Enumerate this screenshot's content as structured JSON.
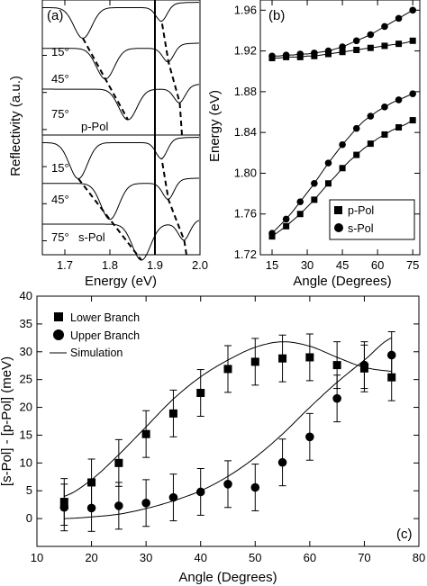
{
  "chart_data": [
    {
      "panel": "(a)",
      "type": "line",
      "xlabel": "Energy (eV)",
      "ylabel": "Reflectivity (a.u.)",
      "xlim": [
        1.65,
        2.0
      ],
      "xticks": [
        "1.7",
        "1.8",
        "1.9",
        "2.0"
      ],
      "labels": {
        "p_angles": [
          "15°",
          "45°",
          "75°"
        ],
        "s_angles": [
          "15°",
          "45°",
          "75°"
        ],
        "p": "p-Pol",
        "s": "s-Pol"
      },
      "vline_x": 1.9,
      "series": [
        {
          "group": "p-Pol",
          "name": "15°",
          "dip_x": 1.74,
          "dip2_x": 1.915,
          "base": 0.97
        },
        {
          "group": "p-Pol",
          "name": "45°",
          "dip_x": 1.79,
          "dip2_x": 1.93,
          "base": 0.81
        },
        {
          "group": "p-Pol",
          "name": "75°",
          "dip_x": 1.84,
          "dip2_x": 1.955,
          "base": 0.65
        },
        {
          "group": "s-Pol",
          "name": "15°",
          "dip_x": 1.73,
          "dip2_x": 1.915,
          "base": 0.44
        },
        {
          "group": "s-Pol",
          "name": "45°",
          "dip_x": 1.8,
          "dip2_x": 1.93,
          "base": 0.28
        },
        {
          "group": "s-Pol",
          "name": "75°",
          "dip_x": 1.87,
          "dip2_x": 1.965,
          "base": 0.12
        }
      ]
    },
    {
      "panel": "(b)",
      "type": "scatter",
      "xlabel": "Angle (Degrees)",
      "ylabel": "Energy (eV)",
      "xlim": [
        10,
        78
      ],
      "ylim": [
        1.72,
        1.97
      ],
      "xticks": [
        15,
        30,
        45,
        60,
        75
      ],
      "yticks": [
        "1.72",
        "1.76",
        "1.80",
        "1.84",
        "1.88",
        "1.92",
        "1.96"
      ],
      "legend": {
        "position": "bottom-right",
        "entries": [
          "p-Pol",
          "s-Pol"
        ]
      },
      "x": [
        15,
        18,
        21,
        24,
        27,
        30,
        33,
        36,
        39,
        42,
        45,
        48,
        51,
        54,
        57,
        60,
        63,
        66,
        69,
        72,
        75
      ],
      "series": [
        {
          "name": "p-Pol",
          "branch": "upper",
          "values": [
            1.913,
            1.913,
            1.914,
            1.914,
            1.914,
            1.915,
            1.915,
            1.916,
            1.917,
            1.918,
            1.919,
            1.92,
            1.921,
            1.922,
            1.923,
            1.924,
            1.925,
            1.926,
            1.927,
            1.928,
            1.93
          ]
        },
        {
          "name": "s-Pol",
          "branch": "upper",
          "values": [
            1.915,
            1.915,
            1.916,
            1.916,
            1.917,
            1.917,
            1.918,
            1.919,
            1.92,
            1.922,
            1.924,
            1.927,
            1.93,
            1.933,
            1.936,
            1.94,
            1.944,
            1.948,
            1.952,
            1.956,
            1.96
          ]
        },
        {
          "name": "p-Pol",
          "branch": "lower",
          "values": [
            1.738,
            1.743,
            1.748,
            1.754,
            1.76,
            1.767,
            1.774,
            1.782,
            1.79,
            1.797,
            1.805,
            1.812,
            1.818,
            1.824,
            1.829,
            1.834,
            1.838,
            1.842,
            1.845,
            1.848,
            1.852
          ]
        },
        {
          "name": "s-Pol",
          "branch": "lower",
          "values": [
            1.741,
            1.748,
            1.755,
            1.763,
            1.772,
            1.781,
            1.79,
            1.8,
            1.81,
            1.819,
            1.828,
            1.836,
            1.844,
            1.851,
            1.856,
            1.861,
            1.865,
            1.869,
            1.872,
            1.875,
            1.878
          ]
        }
      ]
    },
    {
      "panel": "(c)",
      "type": "scatter",
      "xlabel": "Angle (Degrees)",
      "ylabel": "[s-Pol] - [p-Pol] (meV)",
      "xlim": [
        10,
        80
      ],
      "ylim": [
        -5,
        40
      ],
      "xticks": [
        10,
        20,
        30,
        40,
        50,
        60,
        70,
        80
      ],
      "yticks": [
        0,
        5,
        10,
        15,
        20,
        25,
        30,
        35,
        40
      ],
      "legend": {
        "position": "top-left",
        "entries": [
          "Lower Branch",
          "Upper Branch",
          "Simulation"
        ]
      },
      "x": [
        15,
        20,
        25,
        30,
        35,
        40,
        45,
        50,
        55,
        60,
        65,
        70,
        75
      ],
      "series": [
        {
          "name": "Lower Branch",
          "values": [
            3.0,
            6.5,
            10.0,
            15.2,
            18.9,
            22.6,
            26.9,
            28.2,
            28.8,
            29.0,
            27.6,
            27.0,
            25.4
          ],
          "error": [
            4.2,
            4.2,
            4.2,
            4.2,
            4.2,
            4.2,
            4.2,
            4.2,
            4.2,
            4.2,
            4.2,
            4.2,
            4.2
          ]
        },
        {
          "name": "Upper Branch",
          "values": [
            2.0,
            1.9,
            2.3,
            2.8,
            3.8,
            4.8,
            6.2,
            5.6,
            10.1,
            14.7,
            21.6,
            27.6,
            29.4
          ],
          "error": [
            4.2,
            4.2,
            4.2,
            4.2,
            4.2,
            4.2,
            4.2,
            4.2,
            4.2,
            4.2,
            4.2,
            4.2,
            4.2
          ]
        },
        {
          "name": "Simulation",
          "branch": "lower",
          "x_curve": [
            15,
            20,
            25,
            30,
            35,
            40,
            45,
            50,
            55,
            60,
            65,
            70,
            75
          ],
          "values": [
            4.0,
            7.0,
            11.5,
            16.5,
            21.5,
            25.5,
            28.5,
            30.8,
            31.8,
            31.0,
            29.0,
            27.2,
            26.5
          ]
        },
        {
          "name": "Simulation",
          "branch": "upper",
          "x_curve": [
            15,
            20,
            25,
            30,
            35,
            40,
            45,
            50,
            55,
            60,
            65,
            70,
            75
          ],
          "values": [
            0.0,
            0.3,
            0.8,
            1.8,
            3.2,
            5.0,
            7.6,
            11.0,
            15.2,
            20.0,
            24.5,
            28.5,
            32.5
          ]
        }
      ]
    }
  ]
}
